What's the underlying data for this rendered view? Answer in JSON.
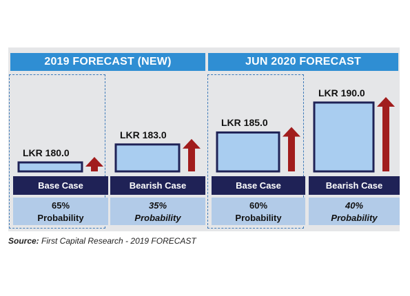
{
  "panels": [
    {
      "title": "2019 FORECAST (NEW)"
    },
    {
      "title": "JUN 2020 FORECAST"
    }
  ],
  "chart_data": {
    "type": "bar",
    "unit": "LKR",
    "groups": [
      "2019 FORECAST (NEW)",
      "JUN 2020 FORECAST"
    ],
    "items": [
      {
        "group": "2019 FORECAST (NEW)",
        "case": "Base Case",
        "value": 180.0,
        "value_label": "LKR 180.0",
        "probability": "65%",
        "probability_label": "Probability",
        "highlighted": true
      },
      {
        "group": "2019 FORECAST (NEW)",
        "case": "Bearish Case",
        "value": 183.0,
        "value_label": "LKR 183.0",
        "probability": "35%",
        "probability_label": "Probability",
        "highlighted": false
      },
      {
        "group": "JUN 2020 FORECAST",
        "case": "Base Case",
        "value": 185.0,
        "value_label": "LKR 185.0",
        "probability": "60%",
        "probability_label": "Probability",
        "highlighted": true
      },
      {
        "group": "JUN 2020 FORECAST",
        "case": "Bearish Case",
        "value": 190.0,
        "value_label": "LKR 190.0",
        "probability": "40%",
        "probability_label": "Probability",
        "highlighted": false
      }
    ],
    "colors": {
      "header": "#2f8ed3",
      "box_fill": "#a9cdf0",
      "box_stroke": "#1f2256",
      "arrow": "#a11d1d",
      "case_bar": "#1f2256",
      "probability_bg": "#b2cbe8"
    }
  },
  "source": {
    "prefix": "Source:",
    "text": " First Capital Research - 2019 FORECAST"
  }
}
